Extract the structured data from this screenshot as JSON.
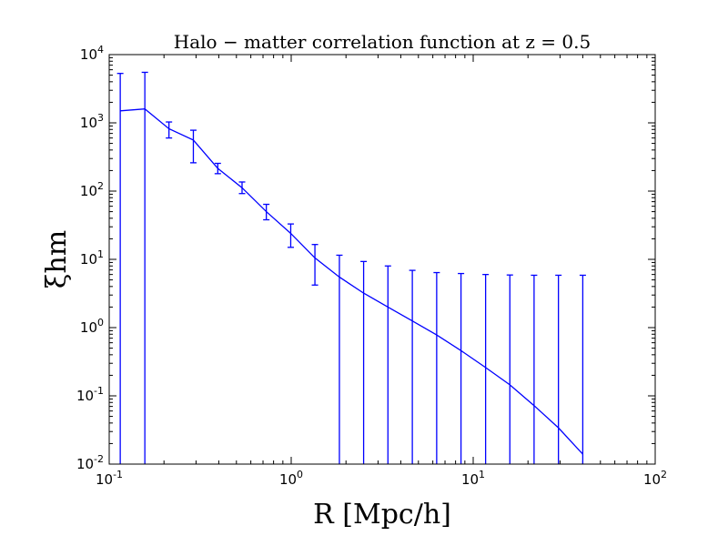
{
  "chart_data": {
    "type": "line",
    "title": "Halo − matter correlation function at z = 0.5",
    "xlabel": "R [Mpc/h]",
    "ylabel": "ξhm",
    "xscale": "log",
    "yscale": "log",
    "xlim": [
      0.1,
      100
    ],
    "ylim": [
      0.01,
      10000
    ],
    "grid": false,
    "x_ticks": [
      {
        "base": "10",
        "exp": "-1"
      },
      {
        "base": "10",
        "exp": "0"
      },
      {
        "base": "10",
        "exp": "1"
      },
      {
        "base": "10",
        "exp": "2"
      }
    ],
    "y_ticks": [
      {
        "base": "10",
        "exp": "-2"
      },
      {
        "base": "10",
        "exp": "-1"
      },
      {
        "base": "10",
        "exp": "0"
      },
      {
        "base": "10",
        "exp": "1"
      },
      {
        "base": "10",
        "exp": "2"
      },
      {
        "base": "10",
        "exp": "3"
      },
      {
        "base": "10",
        "exp": "4"
      }
    ],
    "series": [
      {
        "color": "#0000ff",
        "points": [
          {
            "x": 0.115,
            "y": 1500,
            "yerr_low": 0.01,
            "yerr_high": 5300
          },
          {
            "x": 0.157,
            "y": 1600,
            "yerr_low": 0.01,
            "yerr_high": 5500
          },
          {
            "x": 0.213,
            "y": 820,
            "yerr_low": 600,
            "yerr_high": 1030
          },
          {
            "x": 0.29,
            "y": 560,
            "yerr_low": 260,
            "yerr_high": 780
          },
          {
            "x": 0.395,
            "y": 215,
            "yerr_low": 180,
            "yerr_high": 255
          },
          {
            "x": 0.537,
            "y": 112,
            "yerr_low": 92,
            "yerr_high": 136
          },
          {
            "x": 0.73,
            "y": 50,
            "yerr_low": 38,
            "yerr_high": 64
          },
          {
            "x": 0.994,
            "y": 24,
            "yerr_low": 15,
            "yerr_high": 33
          },
          {
            "x": 1.35,
            "y": 10.5,
            "yerr_low": 4.2,
            "yerr_high": 16.5
          },
          {
            "x": 1.84,
            "y": 5.5,
            "yerr_low": 0.01,
            "yerr_high": 11.5
          },
          {
            "x": 2.5,
            "y": 3.2,
            "yerr_low": 0.01,
            "yerr_high": 9.3
          },
          {
            "x": 3.4,
            "y": 2.0,
            "yerr_low": 0.01,
            "yerr_high": 8.0
          },
          {
            "x": 4.63,
            "y": 1.25,
            "yerr_low": 0.01,
            "yerr_high": 6.9
          },
          {
            "x": 6.3,
            "y": 0.78,
            "yerr_low": 0.01,
            "yerr_high": 6.4
          },
          {
            "x": 8.57,
            "y": 0.46,
            "yerr_low": 0.01,
            "yerr_high": 6.2
          },
          {
            "x": 11.7,
            "y": 0.26,
            "yerr_low": 0.01,
            "yerr_high": 6.0
          },
          {
            "x": 15.9,
            "y": 0.145,
            "yerr_low": 0.01,
            "yerr_high": 5.9
          },
          {
            "x": 21.6,
            "y": 0.072,
            "yerr_low": 0.01,
            "yerr_high": 5.85
          },
          {
            "x": 29.4,
            "y": 0.034,
            "yerr_low": 0.01,
            "yerr_high": 5.85
          },
          {
            "x": 40.0,
            "y": 0.014,
            "yerr_low": 0.01,
            "yerr_high": 5.85
          }
        ]
      }
    ]
  }
}
